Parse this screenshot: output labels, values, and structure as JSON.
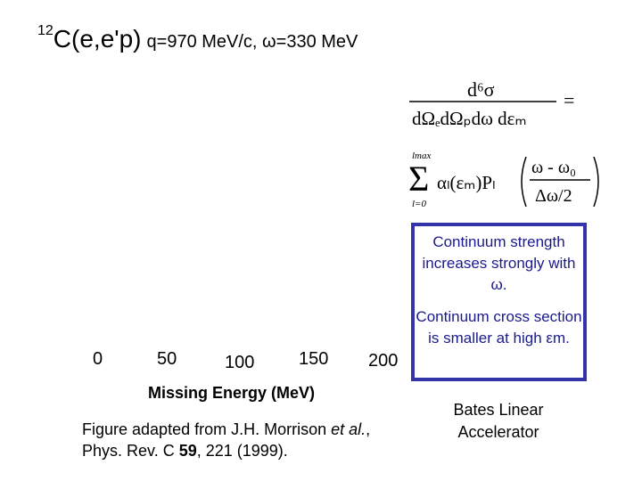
{
  "title": {
    "superscript": "12",
    "reaction": "C(e,e'p)",
    "kinematics": "q=970 MeV/c, ω=330 MeV"
  },
  "formula": {
    "numerator": "d⁶σ",
    "denominator": "dΩₑdΩₚdω dεₘ",
    "equals": "=",
    "sum_upper": "lmax",
    "sum_lower": "l=0",
    "sigma": "Σ",
    "alpha_term": "αₗ(εₘ)Pₗ",
    "frac_num": "ω - ω₀",
    "frac_den": "Δω/2"
  },
  "axis": {
    "ticks": [
      "0",
      "50",
      "100",
      "150",
      "200"
    ],
    "xlabel": "Missing Energy (MeV)"
  },
  "notes": {
    "note1": "Continuum strength increases strongly with ω.",
    "note2": "Continuum cross section is smaller at high εm."
  },
  "citation": {
    "line1_pre": "Figure adapted from J.H. Morrison ",
    "line1_italic": "et al.",
    "line1_post": ",",
    "line2_pre": "Phys. Rev. C ",
    "line2_bold": "59",
    "line2_post": ", 221 (1999)."
  },
  "footer": {
    "line1": "Bates Linear",
    "line2": "Accelerator"
  }
}
